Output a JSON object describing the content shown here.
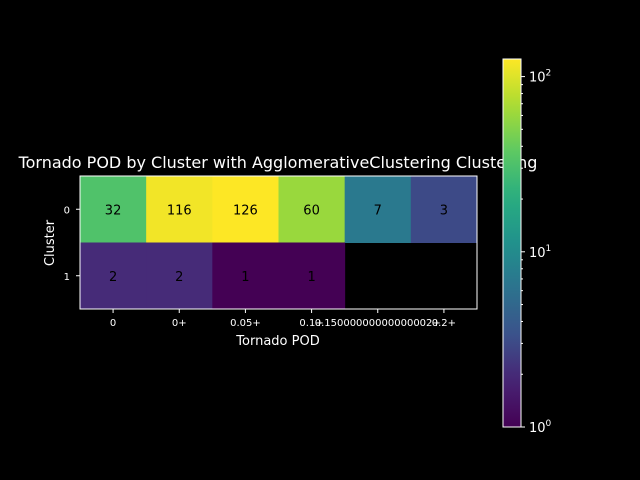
{
  "chart_data": {
    "type": "heatmap",
    "title": "Tornado POD by Cluster with AgglomerativeClustering Clustering",
    "xlabel": "Tornado POD",
    "ylabel": "Cluster",
    "x_categories": [
      "0",
      "0+",
      "0.05+",
      "0.1+",
      "0.15000000000000002+",
      "0.2+"
    ],
    "y_categories": [
      "0",
      "1"
    ],
    "values": [
      [
        32,
        116,
        126,
        60,
        7,
        3
      ],
      [
        2,
        2,
        1,
        1,
        null,
        null
      ]
    ],
    "colorbar": {
      "scale": "log",
      "range": [
        1,
        126
      ],
      "ticks": [
        {
          "value": 1,
          "base": "10",
          "exp": "0"
        },
        {
          "value": 10,
          "base": "10",
          "exp": "1"
        },
        {
          "value": 100,
          "base": "10",
          "exp": "2"
        }
      ],
      "colormap": "viridis"
    },
    "background": "#000000",
    "foreground": "#ffffff"
  }
}
